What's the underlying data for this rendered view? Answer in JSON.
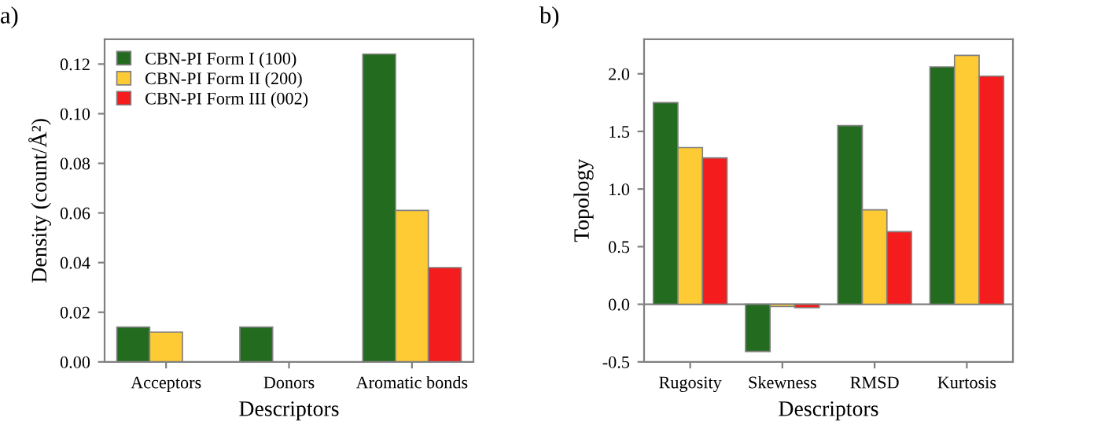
{
  "chart_data": [
    {
      "type": "bar",
      "title": "a)",
      "xlabel": "Descriptors",
      "ylabel": "Density (count/Å²)",
      "categories": [
        "Acceptors",
        "Donors",
        "Aromatic bonds"
      ],
      "series": [
        {
          "name": "CBN-PI Form I (100)",
          "color": "#236b1e",
          "values": [
            0.014,
            0.014,
            0.124
          ]
        },
        {
          "name": "CBN-PI Form II (200)",
          "color": "#fecb34",
          "values": [
            0.012,
            null,
            0.061
          ]
        },
        {
          "name": "CBN-PI Form III (002)",
          "color": "#f41c1c",
          "values": [
            null,
            null,
            0.038
          ]
        }
      ],
      "ylim": [
        0,
        0.13
      ],
      "yticks": [
        {
          "value": 0,
          "label": "0.00"
        },
        {
          "value": 0.02,
          "label": "0.02"
        },
        {
          "value": 0.04,
          "label": "0.04"
        },
        {
          "value": 0.06,
          "label": "0.06"
        },
        {
          "value": 0.08,
          "label": "0.08"
        },
        {
          "value": 0.1,
          "label": "0.10"
        },
        {
          "value": 0.12,
          "label": "0.12"
        }
      ],
      "legend": "top left",
      "grid": false
    },
    {
      "type": "bar",
      "title": "b)",
      "xlabel": "Descriptors",
      "ylabel": "Topology",
      "categories": [
        "Rugosity",
        "Skewness",
        "RMSD",
        "Kurtosis"
      ],
      "series": [
        {
          "color": "#236b1e",
          "values": [
            1.75,
            -0.41,
            1.55,
            2.06
          ]
        },
        {
          "color": "#fecb34",
          "values": [
            1.36,
            -0.02,
            0.82,
            2.16
          ]
        },
        {
          "color": "#f41c1c",
          "values": [
            1.27,
            -0.03,
            0.63,
            1.98
          ]
        }
      ],
      "ylim": [
        -0.5,
        2.3
      ],
      "yticks": [
        {
          "value": -0.5,
          "label": "-0.5"
        },
        {
          "value": 0,
          "label": "0.0"
        },
        {
          "value": 0.5,
          "label": "0.5"
        },
        {
          "value": 1,
          "label": "1.0"
        },
        {
          "value": 1.5,
          "label": "1.5"
        },
        {
          "value": 2,
          "label": "2.0"
        }
      ],
      "ref_lines": [
        {
          "axis": "y",
          "value": 0,
          "color": "#808080"
        }
      ],
      "legend": false,
      "grid": false
    }
  ]
}
